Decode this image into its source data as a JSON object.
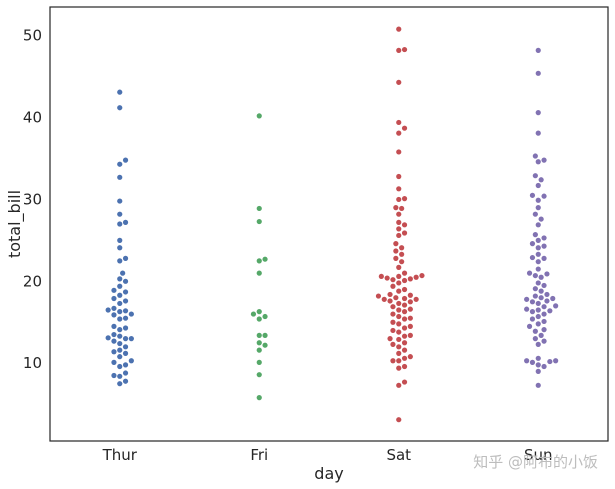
{
  "chart_data": {
    "type": "scatter",
    "subtype": "swarm",
    "title": "",
    "xlabel": "day",
    "ylabel": "total_bill",
    "categories": [
      "Thur",
      "Fri",
      "Sat",
      "Sun"
    ],
    "ylim": [
      0.5,
      53.5
    ],
    "yticks": [
      10,
      20,
      30,
      40,
      50
    ],
    "grid": false,
    "legend": "none",
    "colors": [
      "#4c72b0",
      "#55a868",
      "#c44e52",
      "#8172b2"
    ],
    "series": [
      {
        "category": "Thur",
        "values": [
          43.1,
          41.2,
          34.8,
          34.3,
          32.7,
          29.8,
          28.2,
          27.2,
          27.0,
          25.0,
          24.1,
          22.8,
          22.5,
          21.0,
          20.3,
          20.0,
          19.4,
          18.9,
          18.7,
          18.3,
          17.9,
          17.6,
          17.3,
          16.7,
          16.5,
          16.4,
          16.3,
          16.0,
          15.9,
          15.5,
          15.4,
          14.5,
          14.3,
          14.1,
          13.5,
          13.3,
          13.1,
          13.0,
          13.0,
          12.7,
          12.4,
          12.0,
          11.6,
          11.4,
          11.2,
          10.8,
          10.3,
          10.1,
          9.8,
          9.6,
          8.8,
          8.5,
          8.4,
          7.8,
          7.5
        ]
      },
      {
        "category": "Fri",
        "values": [
          40.2,
          28.9,
          27.3,
          22.7,
          22.5,
          21.0,
          16.3,
          16.0,
          15.7,
          15.4,
          13.4,
          13.4,
          12.5,
          12.2,
          11.6,
          10.1,
          8.6,
          5.8
        ]
      },
      {
        "category": "Sat",
        "values": [
          50.8,
          48.3,
          48.2,
          44.3,
          39.4,
          38.7,
          38.1,
          35.8,
          32.8,
          31.3,
          30.1,
          30.0,
          29.0,
          28.9,
          28.2,
          27.2,
          26.9,
          26.4,
          25.9,
          25.6,
          24.6,
          24.1,
          23.7,
          23.3,
          22.8,
          22.4,
          21.7,
          21.0,
          20.7,
          20.6,
          20.6,
          20.5,
          20.4,
          20.3,
          20.2,
          20.1,
          19.8,
          19.4,
          19.0,
          18.8,
          18.4,
          18.3,
          18.2,
          18.0,
          17.9,
          17.8,
          17.8,
          17.6,
          17.5,
          17.3,
          17.1,
          16.9,
          16.6,
          16.5,
          16.3,
          16.0,
          15.7,
          15.5,
          15.4,
          15.0,
          14.8,
          14.5,
          14.3,
          14.0,
          13.8,
          13.4,
          13.3,
          13.0,
          12.9,
          12.5,
          12.3,
          12.0,
          11.6,
          11.2,
          10.8,
          10.6,
          10.3,
          10.3,
          9.6,
          9.4,
          7.7,
          7.3,
          3.1
        ]
      },
      {
        "category": "Sun",
        "values": [
          48.2,
          45.4,
          40.6,
          38.1,
          35.3,
          34.8,
          34.6,
          32.9,
          32.4,
          31.7,
          30.5,
          30.4,
          29.9,
          29.0,
          28.2,
          27.6,
          26.9,
          25.7,
          25.3,
          25.0,
          24.6,
          24.3,
          24.1,
          23.3,
          22.9,
          22.8,
          22.4,
          21.5,
          21.0,
          20.9,
          20.7,
          20.5,
          19.8,
          19.5,
          19.1,
          18.8,
          18.4,
          18.2,
          18.0,
          17.9,
          17.8,
          17.6,
          17.5,
          17.3,
          17.0,
          16.9,
          16.6,
          16.5,
          16.4,
          16.3,
          16.0,
          15.7,
          15.4,
          15.1,
          14.8,
          14.5,
          14.1,
          13.9,
          13.4,
          13.0,
          12.7,
          12.3,
          10.6,
          10.3,
          10.3,
          10.2,
          10.1,
          9.8,
          9.6,
          9.0,
          7.3
        ]
      }
    ]
  },
  "watermark": "知乎 @阿布的小饭"
}
